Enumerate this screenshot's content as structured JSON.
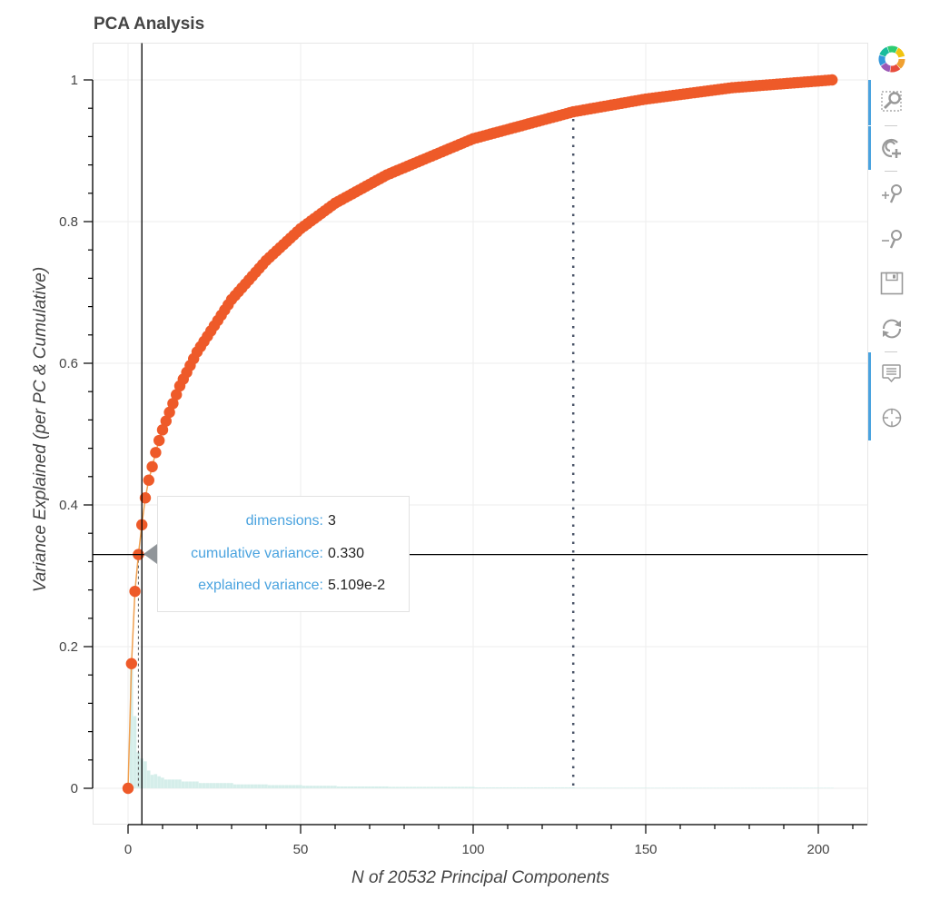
{
  "title": "PCA Analysis",
  "toolbar": {
    "items": [
      {
        "name": "box-zoom",
        "icon": "box-zoom-icon",
        "active": true
      },
      {
        "name": "wheel-zoom",
        "icon": "wheel-zoom-icon",
        "active": true
      },
      {
        "name": "zoom-in",
        "icon": "zoom-in-icon",
        "active": false
      },
      {
        "name": "zoom-out",
        "icon": "zoom-out-icon",
        "active": false
      },
      {
        "name": "save",
        "icon": "save-icon",
        "active": false
      },
      {
        "name": "reset",
        "icon": "reset-icon",
        "active": false
      },
      {
        "name": "hover",
        "icon": "hover-icon",
        "active": true
      },
      {
        "name": "crosshair",
        "icon": "crosshair-icon",
        "active": true
      }
    ],
    "accent": "#4aa3df"
  },
  "tooltip": {
    "rows": [
      {
        "key": "dimensions:",
        "value": "3"
      },
      {
        "key": "cumulative variance:",
        "value": "0.330"
      },
      {
        "key": "explained variance:",
        "value": "5.109e-2"
      }
    ]
  },
  "chart_data": {
    "type": "line",
    "title": "PCA Analysis",
    "xlabel": "N of 20532 Principal Components",
    "ylabel": "Variance Explained (per PC & Cumulative)",
    "xlim": [
      -10,
      214
    ],
    "ylim": [
      -0.05,
      1.05
    ],
    "x_ticks": [
      0,
      50,
      100,
      150,
      200
    ],
    "x_tick_labels": [
      "0",
      "50",
      "100",
      "150",
      "200"
    ],
    "y_ticks": [
      0,
      0.2,
      0.4,
      0.6,
      0.8,
      1
    ],
    "y_tick_labels": [
      "0",
      "0.2",
      "0.4",
      "0.6",
      "0.8",
      "1"
    ],
    "grid": true,
    "colors": {
      "cumulative": "#ee5a29",
      "line": "#f0a050",
      "bars": "#d5eeea",
      "threshold": "#4a5468",
      "crosshair": "#000000"
    },
    "cumulative_anchor_points": {
      "x": [
        0,
        1,
        2,
        3,
        4,
        5,
        6,
        7,
        8,
        9,
        10,
        15,
        20,
        30,
        40,
        50,
        60,
        75,
        100,
        129,
        150,
        175,
        204
      ],
      "y": [
        0,
        0.176,
        0.278,
        0.33,
        0.372,
        0.41,
        0.435,
        0.454,
        0.474,
        0.491,
        0.506,
        0.568,
        0.616,
        0.69,
        0.745,
        0.79,
        0.826,
        0.866,
        0.917,
        0.955,
        0.973,
        0.989,
        1.0
      ]
    },
    "n_points": 205,
    "explained_variance_first": [
      0.176,
      0.102,
      0.05109,
      0.042,
      0.038,
      0.025,
      0.019,
      0.02,
      0.017,
      0.015
    ],
    "threshold": {
      "x": 129,
      "y": 0.95,
      "style": "dotted"
    },
    "crosshair": {
      "x": 4,
      "y": 0.33
    },
    "highlight_point": {
      "x": 3,
      "y": 0.33
    }
  }
}
